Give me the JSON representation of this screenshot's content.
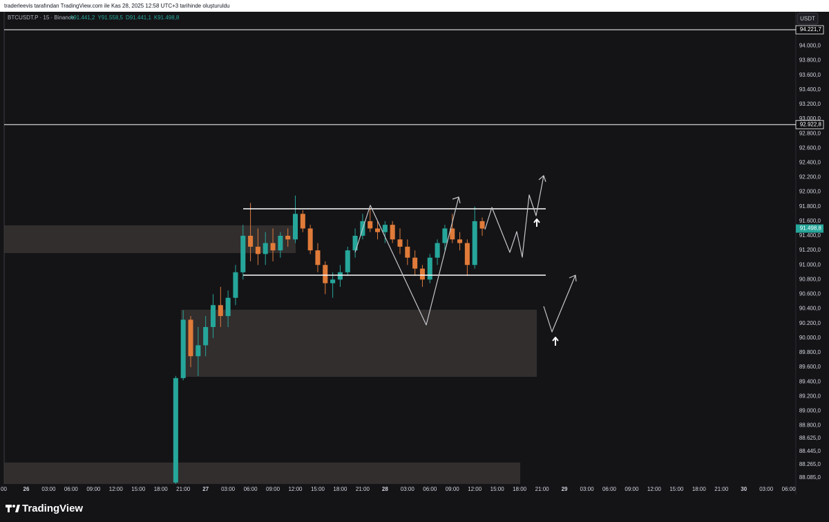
{
  "header": {
    "attribution": "traderleevis tarafından TradingView.com ile Kas 28, 2025 12:58 UTC+3 tarihinde oluşturuldu",
    "logo": "TradingView"
  },
  "symbol_bar": {
    "symbol": "BTCUSDT.P · 15 · Binance",
    "ohlc": [
      "A91.441,2",
      "Y91.558,5",
      "D91.441,1",
      "K91.498,8"
    ]
  },
  "currency_button": "USDT",
  "chart_data": {
    "type": "candlestick",
    "up_color": "#26a69a",
    "down_color": "#e07b39",
    "x": [
      20,
      21,
      22,
      23,
      24,
      25,
      26,
      27,
      28,
      29,
      30,
      31,
      32,
      33,
      34,
      35,
      36,
      37,
      38,
      39,
      40,
      41,
      42,
      43,
      44,
      45,
      46,
      47,
      48,
      49,
      50,
      51,
      52,
      53,
      54,
      55,
      56,
      57,
      58,
      59,
      60,
      61
    ],
    "open": [
      88020,
      89450,
      90250,
      89750,
      89900,
      90150,
      90450,
      90300,
      90550,
      90900,
      91400,
      91250,
      91150,
      91300,
      91200,
      91400,
      91350,
      91700,
      91500,
      91200,
      91000,
      90750,
      90800,
      90900,
      91200,
      91400,
      91600,
      91500,
      91450,
      91550,
      91350,
      91250,
      91100,
      90950,
      90800,
      91100,
      91300,
      91500,
      91350,
      91300,
      91000,
      91600
    ],
    "high": [
      89480,
      90380,
      90300,
      90150,
      90300,
      90600,
      90700,
      90650,
      91000,
      91550,
      91850,
      91500,
      91450,
      91500,
      91450,
      91500,
      91950,
      91750,
      91550,
      91300,
      91050,
      90900,
      91000,
      91250,
      91500,
      91700,
      91780,
      91600,
      91600,
      91600,
      91500,
      91350,
      91200,
      91000,
      91150,
      91350,
      91550,
      91700,
      91450,
      91350,
      91800,
      91650
    ],
    "low": [
      88000,
      89420,
      89600,
      89480,
      89750,
      90000,
      90150,
      90150,
      90450,
      90800,
      91050,
      91000,
      91000,
      91050,
      91100,
      91250,
      91300,
      91450,
      91150,
      90900,
      90600,
      90550,
      90700,
      90850,
      91100,
      91350,
      91450,
      91350,
      91300,
      91300,
      91150,
      91000,
      90850,
      90700,
      90750,
      91000,
      91200,
      91300,
      91200,
      90850,
      90950,
      91400
    ],
    "close": [
      89450,
      90250,
      89750,
      89900,
      90150,
      90450,
      90300,
      90550,
      90900,
      91400,
      91250,
      91150,
      91300,
      91200,
      91400,
      91350,
      91700,
      91500,
      91200,
      91000,
      90750,
      90800,
      90900,
      91200,
      91400,
      91600,
      91500,
      91450,
      91550,
      91350,
      91250,
      91100,
      90950,
      90800,
      91100,
      91300,
      91500,
      91350,
      91300,
      91000,
      91600,
      91499
    ],
    "xlim": [
      -3,
      103
    ],
    "xticks": [
      {
        "value": -3,
        "label": "00"
      },
      {
        "value": 0,
        "label": "26"
      },
      {
        "value": 3,
        "label": "03:00"
      },
      {
        "value": 6,
        "label": "06:00"
      },
      {
        "value": 9,
        "label": "09:00"
      },
      {
        "value": 12,
        "label": "12:00"
      },
      {
        "value": 15,
        "label": "15:00"
      },
      {
        "value": 18,
        "label": "18:00"
      },
      {
        "value": 21,
        "label": "21:00"
      },
      {
        "value": 24,
        "label": "27"
      },
      {
        "value": 27,
        "label": "03:00"
      },
      {
        "value": 30,
        "label": "06:00"
      },
      {
        "value": 33,
        "label": "09:00"
      },
      {
        "value": 36,
        "label": "12:00"
      },
      {
        "value": 39,
        "label": "15:00"
      },
      {
        "value": 42,
        "label": "18:00"
      },
      {
        "value": 45,
        "label": "21:00"
      },
      {
        "value": 48,
        "label": "28"
      },
      {
        "value": 51,
        "label": "03:00"
      },
      {
        "value": 54,
        "label": "06:00"
      },
      {
        "value": 57,
        "label": "09:00"
      },
      {
        "value": 60,
        "label": "12:00"
      },
      {
        "value": 63,
        "label": "15:00"
      },
      {
        "value": 66,
        "label": "18:00"
      },
      {
        "value": 69,
        "label": "21:00"
      },
      {
        "value": 72,
        "label": "29"
      },
      {
        "value": 75,
        "label": "03:00"
      },
      {
        "value": 78,
        "label": "06:00"
      },
      {
        "value": 81,
        "label": "09:00"
      },
      {
        "value": 84,
        "label": "12:00"
      },
      {
        "value": 87,
        "label": "15:00"
      },
      {
        "value": 90,
        "label": "18:00"
      },
      {
        "value": 93,
        "label": "21:00"
      },
      {
        "value": 96,
        "label": "30"
      },
      {
        "value": 99,
        "label": "03:00"
      },
      {
        "value": 102,
        "label": "06:00"
      }
    ],
    "ylim": [
      88000,
      94440
    ],
    "yticks": [
      {
        "value": 94000,
        "label": "94.000,0"
      },
      {
        "value": 93800,
        "label": "93.800,0"
      },
      {
        "value": 93600,
        "label": "93.600,0"
      },
      {
        "value": 93400,
        "label": "93.400,0"
      },
      {
        "value": 93200,
        "label": "93.200,0"
      },
      {
        "value": 93000,
        "label": "93.000,0"
      },
      {
        "value": 92800,
        "label": "92.800,0"
      },
      {
        "value": 92600,
        "label": "92.600,0"
      },
      {
        "value": 92400,
        "label": "92.400,0"
      },
      {
        "value": 92200,
        "label": "92.200,0"
      },
      {
        "value": 92000,
        "label": "92.000,0"
      },
      {
        "value": 91800,
        "label": "91.800,0"
      },
      {
        "value": 91600,
        "label": "91.600,0"
      },
      {
        "value": 91400,
        "label": "91.400,0"
      },
      {
        "value": 91200,
        "label": "91.200,0"
      },
      {
        "value": 91000,
        "label": "91.000,0"
      },
      {
        "value": 90800,
        "label": "90.800,0"
      },
      {
        "value": 90600,
        "label": "90.600,0"
      },
      {
        "value": 90400,
        "label": "90.400,0"
      },
      {
        "value": 90200,
        "label": "90.200,0"
      },
      {
        "value": 90000,
        "label": "90.000,0"
      },
      {
        "value": 89800,
        "label": "89.800,0"
      },
      {
        "value": 89600,
        "label": "89.600,0"
      },
      {
        "value": 89400,
        "label": "89.400,0"
      },
      {
        "value": 89200,
        "label": "89.200,0"
      },
      {
        "value": 89000,
        "label": "89.000,0"
      },
      {
        "value": 88800,
        "label": "88.800,0"
      },
      {
        "value": 88625,
        "label": "88.625,0"
      },
      {
        "value": 88445,
        "label": "88.445,0"
      },
      {
        "value": 88265,
        "label": "88.265,0"
      },
      {
        "value": 88085,
        "label": "88.085,0"
      }
    ],
    "price_lines": [
      {
        "value": 94221.7,
        "label": "94.221,7"
      },
      {
        "value": 92922.8,
        "label": "92.922,8"
      }
    ],
    "last_price": {
      "value": 91498.8,
      "label": "91.498,8"
    }
  }
}
